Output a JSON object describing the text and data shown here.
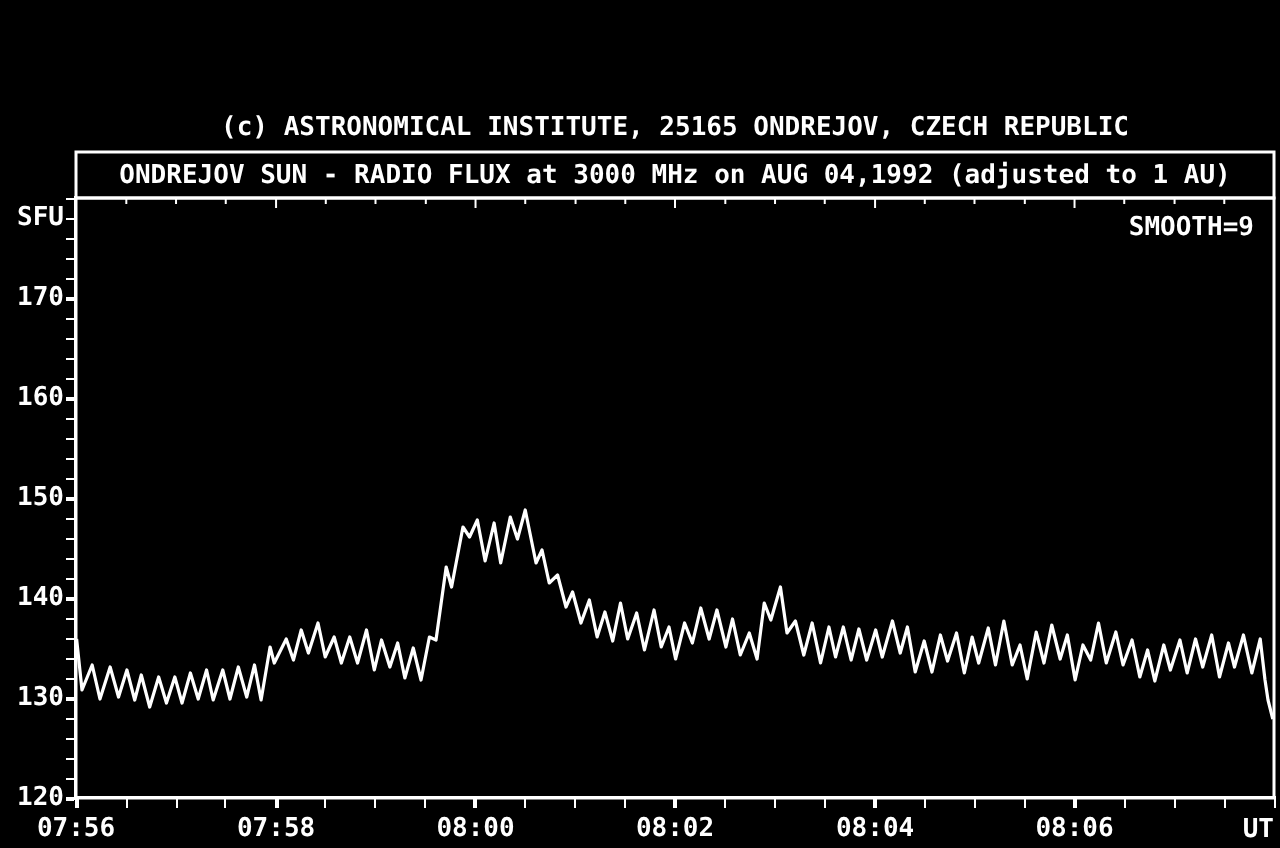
{
  "chart_data": {
    "type": "line",
    "title": "ONDREJOV SUN - RADIO FLUX at 3000 MHz on AUG 04,1992 (adjusted to 1 AU)",
    "ylabel": "SFU",
    "xlabel": "UT",
    "annotations": [
      "(c) ASTRONOMICAL INSTITUTE, 25165 ONDREJOV, CZECH REPUBLIC",
      "SMOOTH=9"
    ],
    "x": [
      7.9334,
      7.9343,
      7.936,
      7.9373,
      7.939,
      7.9404,
      7.9418,
      7.9431,
      7.9442,
      7.9456,
      7.9471,
      7.9484,
      7.9498,
      7.951,
      7.9524,
      7.9537,
      7.9551,
      7.9562,
      7.9578,
      7.959,
      7.9604,
      7.9618,
      7.9631,
      7.9642,
      7.9657,
      7.9664,
      7.9684,
      7.9696,
      7.9709,
      7.9721,
      7.9737,
      7.9749,
      7.9764,
      7.9776,
      7.979,
      7.9803,
      7.9818,
      7.9831,
      7.9843,
      7.9857,
      7.987,
      7.9882,
      7.9896,
      7.9909,
      7.9923,
      7.9934,
      7.9951,
      7.996,
      7.9979,
      7.999,
      8.0003,
      8.0016,
      8.0031,
      8.0042,
      8.0058,
      8.007,
      8.0083,
      8.0101,
      8.0111,
      8.0123,
      8.0137,
      8.0151,
      8.0162,
      8.0176,
      8.019,
      8.0203,
      8.0216,
      8.0229,
      8.0242,
      8.0254,
      8.0269,
      8.0282,
      8.0298,
      8.031,
      8.0323,
      8.0334,
      8.0349,
      8.0362,
      8.0376,
      8.039,
      8.0403,
      8.0418,
      8.0429,
      8.0442,
      8.0457,
      8.047,
      8.0482,
      8.0493,
      8.0509,
      8.052,
      8.0534,
      8.0548,
      8.0562,
      8.0576,
      8.059,
      8.0601,
      8.0614,
      8.0627,
      8.064,
      8.0653,
      8.0668,
      8.0679,
      8.0696,
      8.0709,
      8.0721,
      8.0734,
      8.0749,
      8.0762,
      8.0776,
      8.0788,
      8.0803,
      8.0816,
      8.0829,
      8.084,
      8.0856,
      8.0868,
      8.0882,
      8.0896,
      8.0909,
      8.0921,
      8.0936,
      8.0949,
      8.0962,
      8.0976,
      8.0988,
      8.1001,
      8.1014,
      8.1027,
      8.104,
      8.1053,
      8.1069,
      8.1081,
      8.1096,
      8.1109,
      8.1122,
      8.1134,
      8.1149,
      8.116,
      8.1176,
      8.1188,
      8.1202,
      8.1214,
      8.1229,
      8.1242,
      8.1257,
      8.1267,
      8.1282,
      8.1296,
      8.131,
      8.1318,
      8.1323,
      8.1331
    ],
    "series": [
      {
        "color": "#ffffff",
        "values": [
          135.9,
          130.8,
          133.3,
          129.9,
          133.1,
          130.1,
          132.8,
          129.8,
          132.3,
          129.1,
          132.1,
          129.5,
          132.1,
          129.5,
          132.5,
          129.9,
          132.8,
          129.8,
          132.8,
          129.9,
          133.1,
          130.1,
          133.3,
          129.8,
          135.1,
          133.5,
          135.9,
          133.8,
          136.8,
          134.5,
          137.5,
          134.1,
          136.1,
          133.5,
          136.1,
          133.5,
          136.8,
          132.8,
          135.8,
          133.1,
          135.5,
          132.0,
          135.0,
          131.8,
          136.1,
          135.8,
          143.1,
          141.1,
          147.1,
          146.1,
          147.8,
          143.7,
          147.5,
          143.5,
          148.1,
          145.9,
          148.8,
          143.5,
          144.8,
          141.5,
          142.3,
          139.1,
          140.6,
          137.5,
          139.8,
          136.1,
          138.6,
          135.7,
          139.5,
          135.9,
          138.5,
          134.8,
          138.8,
          135.1,
          137.1,
          133.9,
          137.5,
          135.5,
          139.0,
          135.9,
          138.8,
          135.1,
          137.9,
          134.3,
          136.5,
          133.9,
          139.5,
          137.8,
          141.1,
          136.5,
          137.7,
          134.3,
          137.5,
          133.5,
          137.1,
          134.1,
          137.1,
          133.8,
          136.9,
          133.8,
          136.8,
          134.1,
          137.7,
          134.5,
          137.1,
          132.6,
          135.7,
          132.6,
          136.3,
          133.7,
          136.5,
          132.5,
          136.1,
          133.5,
          137.0,
          133.3,
          137.7,
          133.3,
          135.3,
          131.9,
          136.6,
          133.5,
          137.3,
          133.9,
          136.3,
          131.8,
          135.3,
          133.8,
          137.5,
          133.5,
          136.6,
          133.3,
          135.8,
          132.1,
          134.8,
          131.7,
          135.3,
          132.8,
          135.8,
          132.5,
          135.9,
          133.1,
          136.3,
          132.1,
          135.5,
          133.1,
          136.3,
          132.5,
          135.9,
          131.8,
          129.8,
          127.9
        ]
      }
    ],
    "xlim": [
      7.9333,
      8.1333
    ],
    "xticks": [
      {
        "value": 7.9333,
        "label": "07:56"
      },
      {
        "value": 7.9417,
        "label": null
      },
      {
        "value": 7.95,
        "label": null
      },
      {
        "value": 7.9583,
        "label": null
      },
      {
        "value": 7.9667,
        "label": "07:58"
      },
      {
        "value": 7.975,
        "label": null
      },
      {
        "value": 7.9833,
        "label": null
      },
      {
        "value": 7.9917,
        "label": null
      },
      {
        "value": 8,
        "label": "08:00"
      },
      {
        "value": 8.0083,
        "label": null
      },
      {
        "value": 8.0167,
        "label": null
      },
      {
        "value": 8.025,
        "label": null
      },
      {
        "value": 8.0333,
        "label": "08:02"
      },
      {
        "value": 8.0417,
        "label": null
      },
      {
        "value": 8.05,
        "label": null
      },
      {
        "value": 8.0583,
        "label": null
      },
      {
        "value": 8.0667,
        "label": "08:04"
      },
      {
        "value": 8.075,
        "label": null
      },
      {
        "value": 8.0833,
        "label": null
      },
      {
        "value": 8.0917,
        "label": null
      },
      {
        "value": 8.1,
        "label": "08:06"
      },
      {
        "value": 8.1083,
        "label": null
      },
      {
        "value": 8.1167,
        "label": null
      },
      {
        "value": 8.125,
        "label": null
      },
      {
        "value": 8.1333,
        "label": null
      }
    ],
    "ylim": [
      120,
      180
    ],
    "yticks": [
      120,
      {
        "value": 122,
        "label": null
      },
      {
        "value": 124,
        "label": null
      },
      {
        "value": 126,
        "label": null
      },
      {
        "value": 128,
        "label": null
      },
      130,
      {
        "value": 132,
        "label": null
      },
      {
        "value": 134,
        "label": null
      },
      {
        "value": 136,
        "label": null
      },
      {
        "value": 138,
        "label": null
      },
      140,
      {
        "value": 142,
        "label": null
      },
      {
        "value": 144,
        "label": null
      },
      {
        "value": 146,
        "label": null
      },
      {
        "value": 148,
        "label": null
      },
      150,
      {
        "value": 152,
        "label": null
      },
      {
        "value": 154,
        "label": null
      },
      {
        "value": 156,
        "label": null
      },
      {
        "value": 158,
        "label": null
      },
      160,
      {
        "value": 162,
        "label": null
      },
      {
        "value": 164,
        "label": null
      },
      {
        "value": 166,
        "label": null
      },
      {
        "value": 168,
        "label": null
      },
      170,
      {
        "value": 172,
        "label": null
      },
      {
        "value": 174,
        "label": null
      },
      {
        "value": 176,
        "label": null
      },
      {
        "value": 178,
        "label": null
      },
      {
        "value": 180,
        "label": null
      }
    ],
    "grid": false,
    "legend": false,
    "marker": "none",
    "line_style": "solid"
  }
}
